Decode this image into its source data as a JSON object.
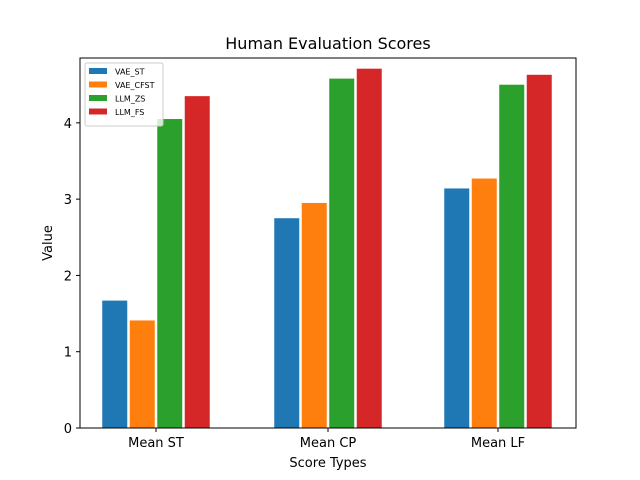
{
  "chart_data": {
    "type": "bar",
    "title": "Human Evaluation Scores",
    "xlabel": "Score Types",
    "ylabel": "Value",
    "categories": [
      "Mean ST",
      "Mean CP",
      "Mean LF"
    ],
    "ylim": [
      0,
      4.85
    ],
    "yticks": [
      "0",
      "1",
      "2",
      "3",
      "4"
    ],
    "grid": false,
    "legend_position": "upper-left",
    "series": [
      {
        "name": "VAE_ST",
        "color": "#1f77b4",
        "values": [
          1.67,
          2.75,
          3.14
        ]
      },
      {
        "name": "VAE_CFST",
        "color": "#ff7f0e",
        "values": [
          1.41,
          2.95,
          3.27
        ]
      },
      {
        "name": "LLM_ZS",
        "color": "#2ca02c",
        "values": [
          4.05,
          4.58,
          4.5
        ]
      },
      {
        "name": "LLM_FS",
        "color": "#d62728",
        "values": [
          4.35,
          4.71,
          4.63
        ]
      }
    ]
  }
}
